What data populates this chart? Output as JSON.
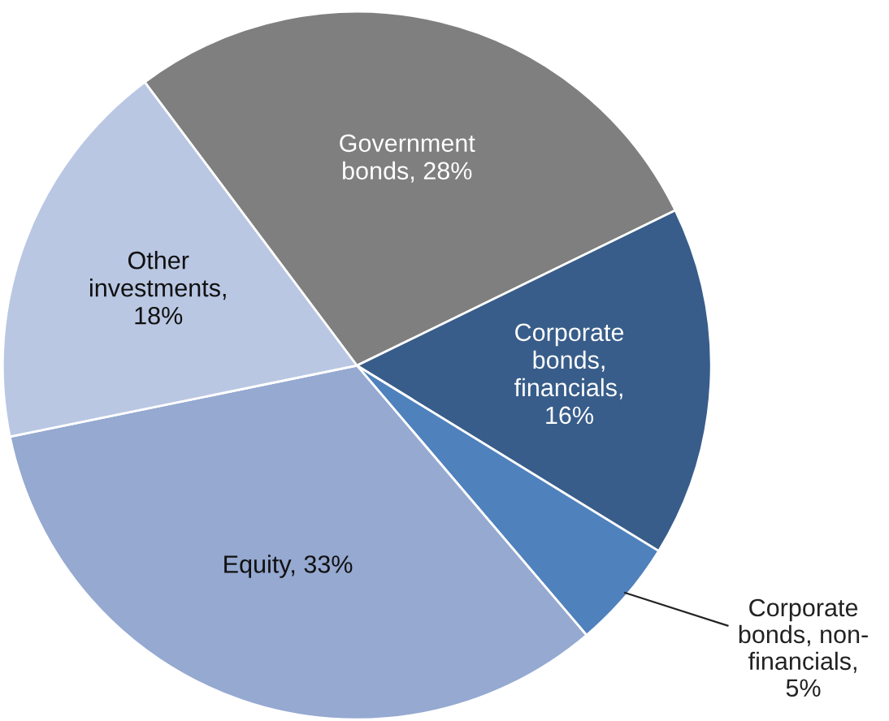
{
  "chart_data": {
    "type": "pie",
    "categories": [
      "Government bonds, 28%",
      "Corporate bonds, financials, 16%",
      "Corporate bonds, non-financials, 5%",
      "Equity, 33%",
      "Other investments, 18%"
    ],
    "values": [
      28,
      16,
      5,
      33,
      18
    ],
    "colors": [
      "#7f7f7f",
      "#385d8a",
      "#4f81bd",
      "#95a9d1",
      "#b9c7e3"
    ],
    "legend": false
  }
}
